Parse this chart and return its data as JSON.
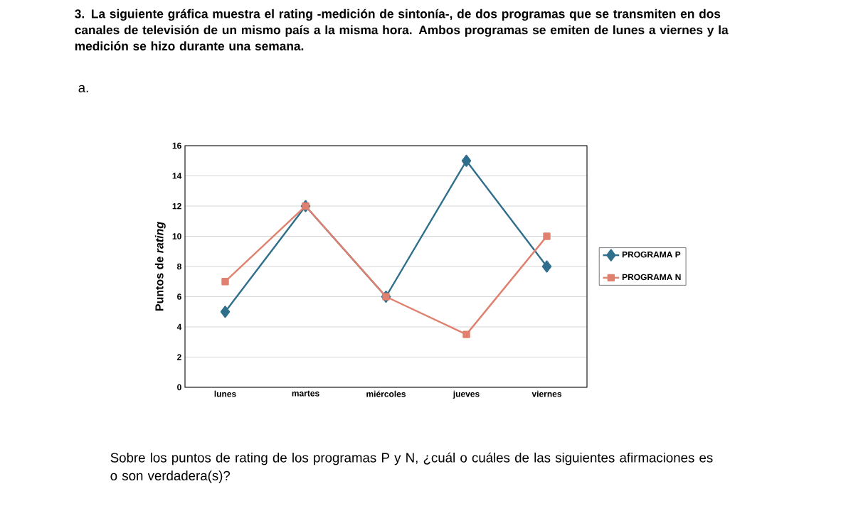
{
  "chart_data": {
    "type": "line",
    "title": "3. La siguiente gráfica muestra el rating -medición de sintonía-, de dos programas que se transmiten en dos canales de televisión de un mismo país a la misma hora. Ambos programas se emiten de lunes a viernes y la medición se hizo durante una semana.",
    "ylabel": "Puntos de *rating*",
    "categories": [
      "lunes",
      "martes",
      "miércoles",
      "jueves",
      "viernes"
    ],
    "series": [
      {
        "name": "PROGRAMA P",
        "color": "#2f6f8c",
        "marker": "diamond",
        "values": [
          5,
          12,
          6,
          15,
          8
        ]
      },
      {
        "name": "PROGRAMA N",
        "color": "#e0806e",
        "marker": "square",
        "values": [
          7,
          12,
          6,
          3.5,
          10
        ]
      }
    ],
    "ylim": [
      0,
      16
    ],
    "yticks": [
      0,
      2,
      4,
      6,
      8,
      10,
      12,
      14,
      16
    ],
    "grid": "y",
    "legend": "right",
    "line_style": "solid",
    "annotations": [
      "a.",
      "Sobre los puntos de rating de los programas P y N, ¿cuál o cuáles de las siguientes afirmaciones es o son verdadera(s)?"
    ]
  }
}
